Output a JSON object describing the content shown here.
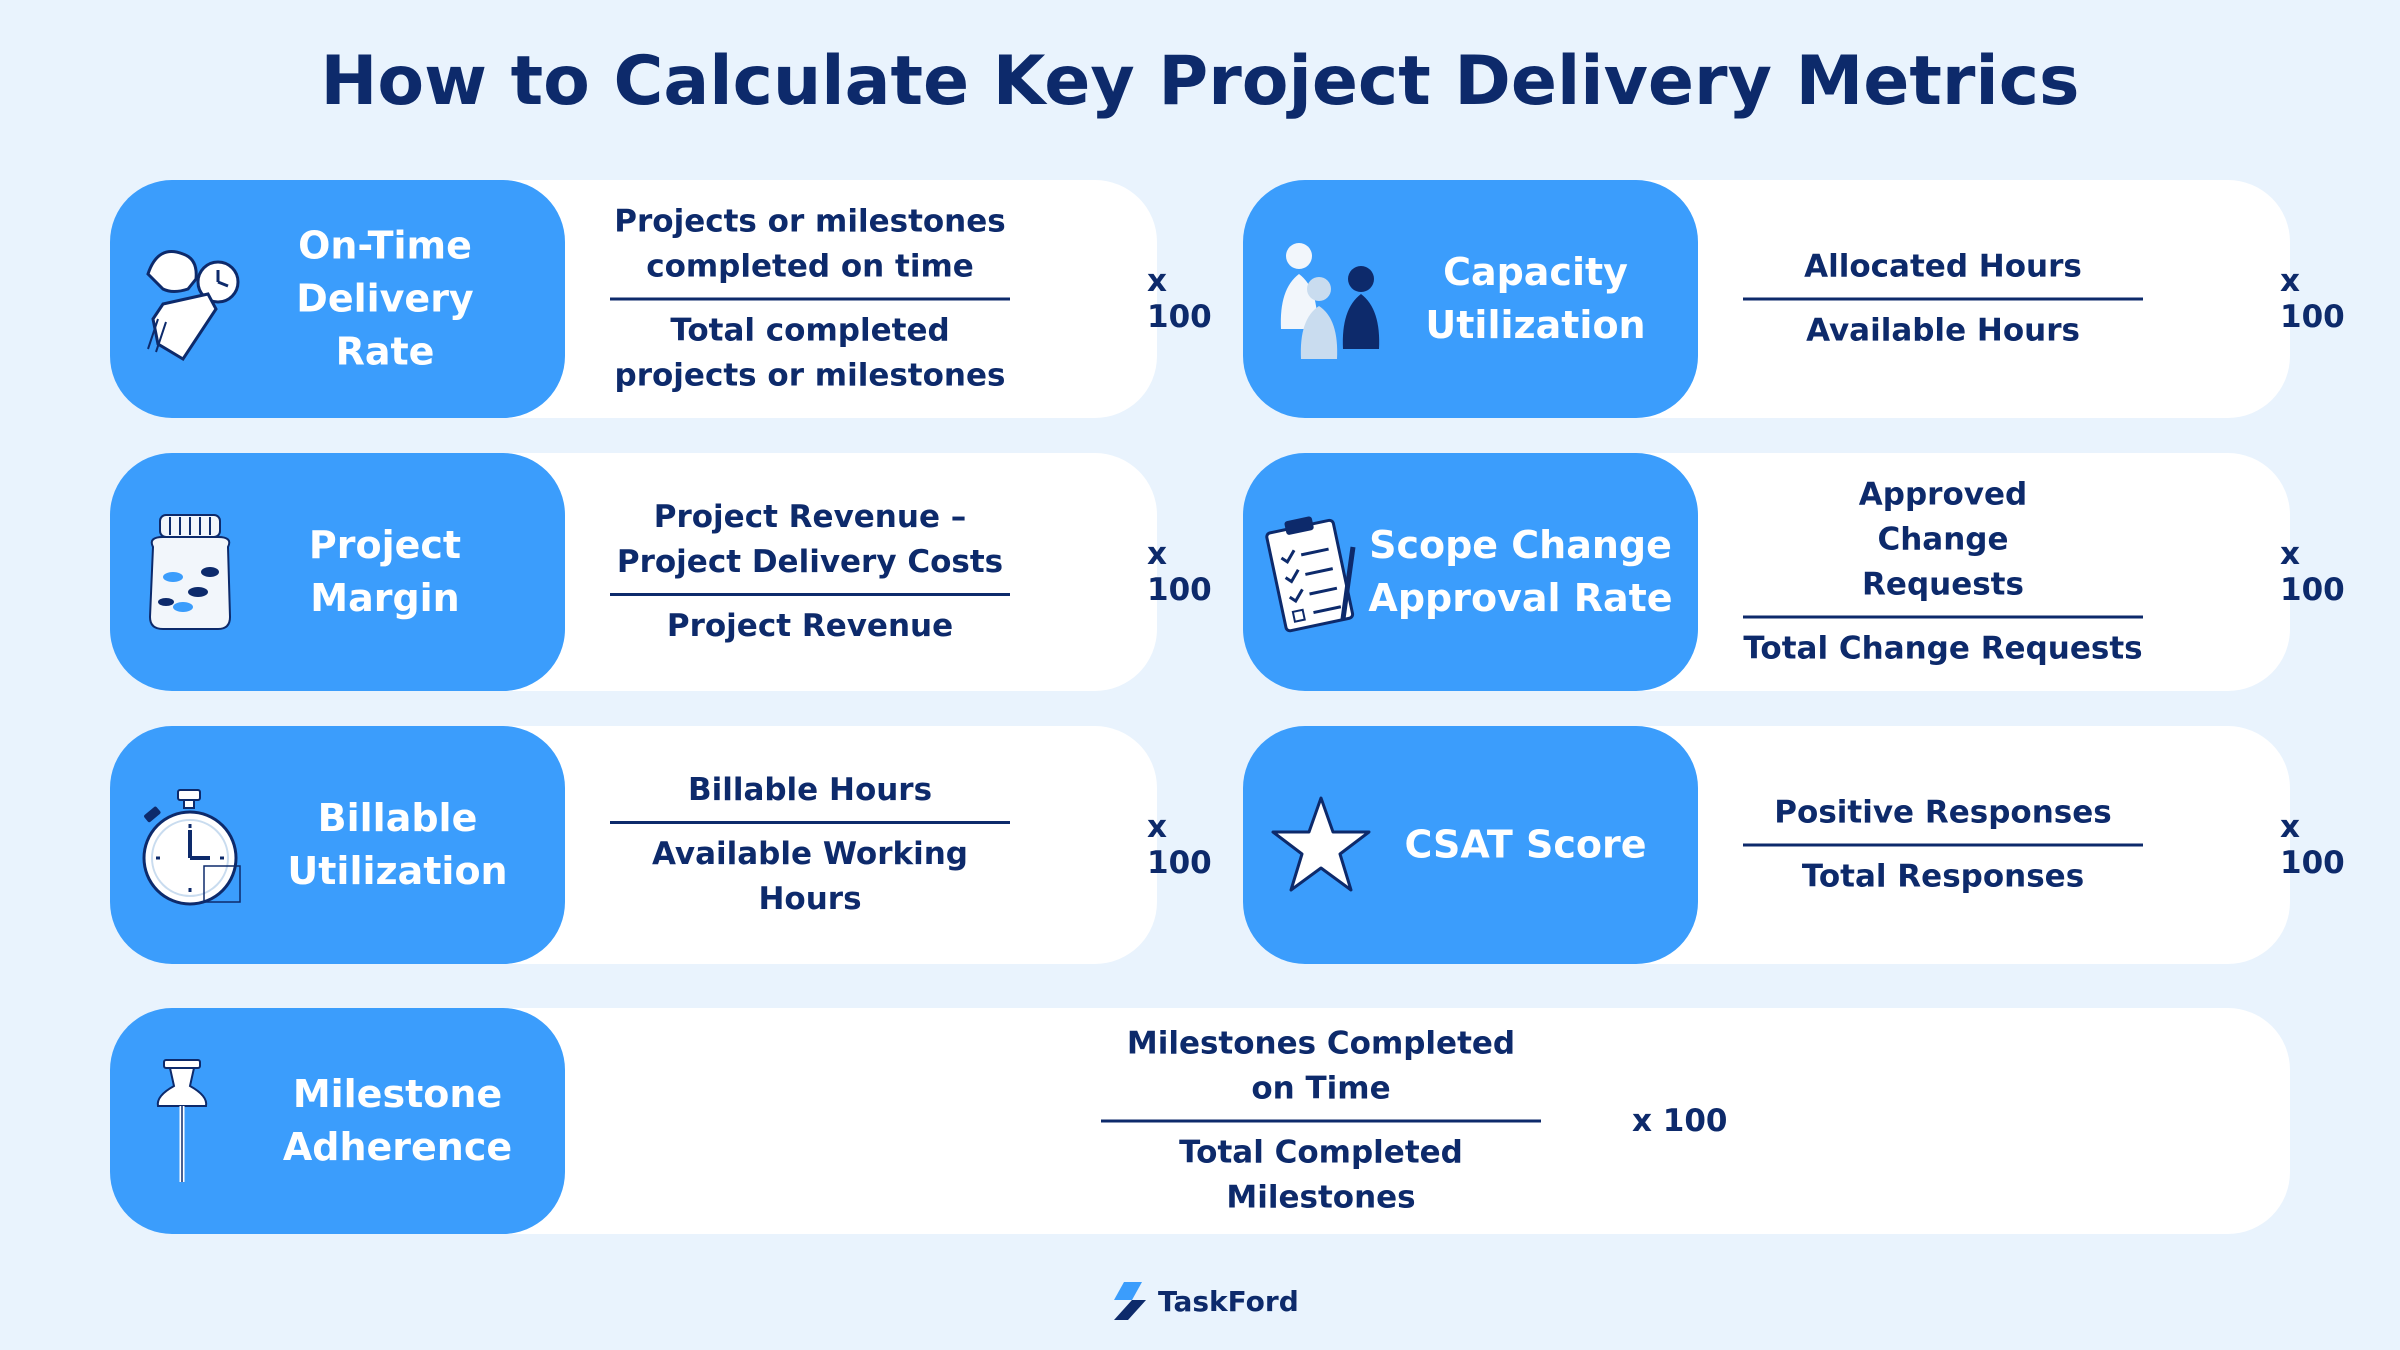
{
  "title": "How to Calculate Key Project Delivery Metrics",
  "colors": {
    "background": "#e9f3fd",
    "accent": "#3b9dfc",
    "text": "#0d2a6b",
    "card": "#ffffff"
  },
  "metrics": [
    {
      "label": "On-Time Delivery Rate",
      "icon": "clock-hand-icon",
      "numerator": "Projects or milestones completed on time",
      "denominator": "Total completed projects or milestones",
      "multiplier": "x 100"
    },
    {
      "label": "Capacity Utilization",
      "icon": "game-pieces-icon",
      "numerator": "Allocated Hours",
      "denominator": "Available Hours",
      "multiplier": "x 100"
    },
    {
      "label": "Project Margin",
      "icon": "coin-jar-icon",
      "numerator": "Project Revenue – Project Delivery Costs",
      "denominator": "Project Revenue",
      "multiplier": "x 100"
    },
    {
      "label": "Scope Change Approval Rate",
      "icon": "clipboard-checklist-icon",
      "numerator": "Approved Change Requests",
      "denominator": "Total Change Requests",
      "multiplier": "x 100"
    },
    {
      "label": "Billable Utilization",
      "icon": "stopwatch-icon",
      "numerator": "Billable Hours",
      "denominator": "Available Working Hours",
      "multiplier": "x 100"
    },
    {
      "label": "CSAT Score",
      "icon": "star-icon",
      "numerator": "Positive Responses",
      "denominator": "Total Responses",
      "multiplier": "x 100"
    },
    {
      "label": "Milestone Adherence",
      "icon": "pushpin-icon",
      "numerator": "Milestones Completed on Time",
      "denominator": "Total Completed Milestones",
      "multiplier": "x 100"
    }
  ],
  "footer": {
    "brand": "TaskFord",
    "icon": "taskford-logo-icon"
  }
}
